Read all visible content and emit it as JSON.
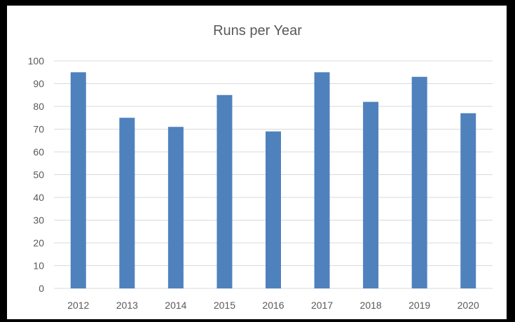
{
  "chart_data": {
    "type": "bar",
    "title": "Runs per Year",
    "categories": [
      "2012",
      "2013",
      "2014",
      "2015",
      "2016",
      "2017",
      "2018",
      "2019",
      "2020"
    ],
    "values": [
      95,
      75,
      71,
      85,
      69,
      95,
      82,
      93,
      77
    ],
    "ylim": [
      0,
      100
    ],
    "yticks": [
      "0",
      "10",
      "20",
      "30",
      "40",
      "50",
      "60",
      "70",
      "80",
      "90",
      "100"
    ],
    "grid": true,
    "bar_color": "#4f81bd",
    "gridline_color": "#d9d9d9",
    "legend": "none"
  }
}
